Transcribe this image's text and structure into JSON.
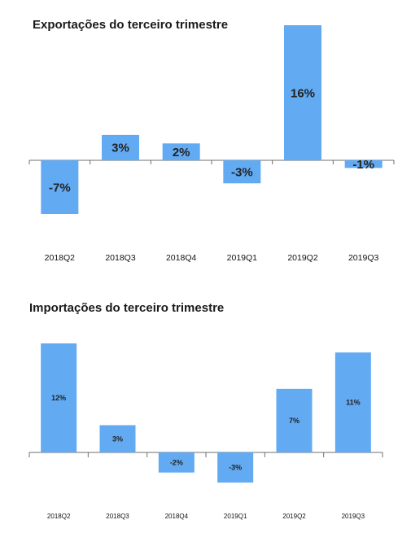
{
  "bar_color": "#62aaf2",
  "axis_color": "#6f6f6f",
  "chart_data": [
    {
      "type": "bar",
      "title": "Exportações do terceiro trimestre",
      "categories": [
        "2018Q2",
        "2018Q3",
        "2018Q4",
        "2019Q1",
        "2019Q2",
        "2019Q3"
      ],
      "values": [
        -7,
        3,
        2,
        -3,
        16,
        -1
      ],
      "data_labels": [
        "-7%",
        "3%",
        "2%",
        "-3%",
        "16%",
        "-1%"
      ],
      "xlabel": "",
      "ylabel": "",
      "ylim": [
        -7,
        16
      ],
      "grid": false,
      "legend": "none"
    },
    {
      "type": "bar",
      "title": "Importações do terceiro trimestre",
      "categories": [
        "2018Q2",
        "2018Q3",
        "2018Q4",
        "2019Q1",
        "2019Q2",
        "2019Q3"
      ],
      "values": [
        12,
        3,
        -2,
        -3,
        7,
        11
      ],
      "data_labels": [
        "12%",
        "3%",
        "-2%",
        "-3%",
        "7%",
        "11%"
      ],
      "xlabel": "",
      "ylabel": "",
      "ylim": [
        -3,
        12
      ],
      "grid": false,
      "legend": "none"
    }
  ]
}
